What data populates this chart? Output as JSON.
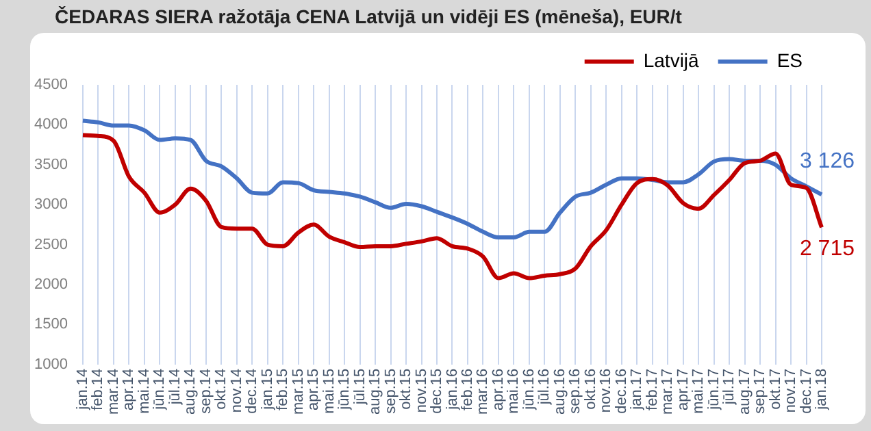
{
  "chart_data": {
    "type": "line",
    "title": "ČEDARAS SIERA ražotāja CENA Latvijā un vidēji ES (mēneša), EUR/t",
    "categories": [
      "jan.14",
      "feb.14",
      "mar.14",
      "apr.14",
      "mai.14",
      "jūn.14",
      "jūl.14",
      "aug.14",
      "sep.14",
      "okt.14",
      "nov.14",
      "dec.14",
      "jan.15",
      "feb.15",
      "mar.15",
      "apr.15",
      "mai.15",
      "jūn.15",
      "jūl.15",
      "aug.15",
      "sep.15",
      "okt.15",
      "nov.15",
      "dec.15",
      "jan.16",
      "feb.16",
      "mar.16",
      "apr.16",
      "mai.16",
      "jūn.16",
      "jūl.16",
      "aug.16",
      "sep.16",
      "okt.16",
      "nov.16",
      "dec.16",
      "jan.17",
      "feb.17",
      "mar.17",
      "apr.17",
      "mai.17",
      "jūn.17",
      "jūl.17",
      "aug.17",
      "sep.17",
      "okt.17",
      "nov.17",
      "dec.17",
      "jan.18"
    ],
    "series": [
      {
        "name": "Latvijā",
        "color": "#c00000",
        "values": [
          3870,
          3860,
          3800,
          3350,
          3150,
          2900,
          3000,
          3200,
          3050,
          2720,
          2700,
          2700,
          2500,
          2480,
          2650,
          2750,
          2600,
          2530,
          2470,
          2480,
          2480,
          2510,
          2540,
          2580,
          2480,
          2450,
          2350,
          2080,
          2140,
          2080,
          2110,
          2130,
          2200,
          2480,
          2680,
          3000,
          3270,
          3320,
          3240,
          3020,
          2950,
          3120,
          3310,
          3520,
          3550,
          3640,
          3250,
          3210,
          2715
        ]
      },
      {
        "name": "ES",
        "color": "#4472c4",
        "values": [
          4050,
          4030,
          3990,
          3990,
          3930,
          3810,
          3830,
          3810,
          3550,
          3480,
          3330,
          3150,
          3140,
          3280,
          3270,
          3180,
          3160,
          3140,
          3100,
          3030,
          2960,
          3010,
          2980,
          2910,
          2840,
          2760,
          2660,
          2590,
          2590,
          2660,
          2660,
          2900,
          3100,
          3150,
          3250,
          3330,
          3330,
          3310,
          3280,
          3280,
          3380,
          3540,
          3570,
          3550,
          3550,
          3500,
          3330,
          3230,
          3126
        ]
      }
    ],
    "ylim": [
      1000,
      4500
    ],
    "yticks": [
      1000,
      1500,
      2000,
      2500,
      3000,
      3500,
      4000,
      4500
    ],
    "grid": "x",
    "legend": "top",
    "marker": "none",
    "line_style": "solid",
    "annotations": [
      {
        "text": "3 126",
        "x": "jan.18",
        "y": 3126
      },
      {
        "text": "2 715",
        "x": "jan.18",
        "y": 2715
      }
    ]
  }
}
